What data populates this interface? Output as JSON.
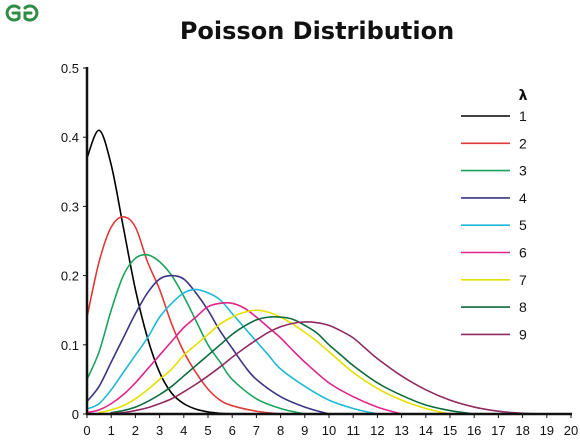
{
  "logo": {
    "name": "geeksforgeeks-logo",
    "color": "#2f8d46"
  },
  "chart_data": {
    "type": "line",
    "title": "Poisson Distribution",
    "xlabel": "",
    "ylabel": "",
    "xlim": [
      0,
      20
    ],
    "ylim": [
      0,
      0.5
    ],
    "x_ticks": [
      "0",
      "1",
      "2",
      "3",
      "4",
      "5",
      "6",
      "7",
      "8",
      "9",
      "10",
      "11",
      "12",
      "13",
      "14",
      "15",
      "16",
      "17",
      "18",
      "19",
      "20"
    ],
    "y_ticks": [
      "0",
      "0.1",
      "0.2",
      "0.3",
      "0.4",
      "0.5"
    ],
    "grid": false,
    "legend": {
      "title": "λ",
      "placement": "right"
    },
    "series": [
      {
        "name": "1",
        "color": "#000000",
        "x": [
          0,
          0.5,
          1,
          1.5,
          2,
          2.5,
          3,
          3.5,
          4,
          4.5,
          5,
          5.5,
          6
        ],
        "y": [
          0.37,
          0.41,
          0.36,
          0.27,
          0.18,
          0.11,
          0.06,
          0.03,
          0.015,
          0.007,
          0.003,
          0.001,
          0
        ]
      },
      {
        "name": "2",
        "color": "#e03a3a",
        "x": [
          0,
          0.5,
          1,
          1.5,
          2,
          2.5,
          3,
          3.5,
          4,
          4.5,
          5,
          5.5,
          6,
          7,
          8
        ],
        "y": [
          0.14,
          0.22,
          0.27,
          0.285,
          0.27,
          0.22,
          0.18,
          0.13,
          0.09,
          0.06,
          0.036,
          0.02,
          0.012,
          0.004,
          0
        ]
      },
      {
        "name": "3",
        "color": "#1aa35c",
        "x": [
          0,
          0.5,
          1,
          1.5,
          2,
          2.5,
          3,
          3.5,
          4,
          4.5,
          5,
          5.5,
          6,
          7,
          8,
          9
        ],
        "y": [
          0.05,
          0.09,
          0.15,
          0.2,
          0.225,
          0.23,
          0.22,
          0.2,
          0.17,
          0.135,
          0.1,
          0.075,
          0.05,
          0.022,
          0.008,
          0
        ]
      },
      {
        "name": "4",
        "color": "#3a3585",
        "x": [
          0,
          0.5,
          1,
          1.5,
          2,
          2.5,
          3,
          3.5,
          4,
          4.5,
          5,
          5.5,
          6,
          6.5,
          7,
          8,
          9,
          10
        ],
        "y": [
          0.018,
          0.04,
          0.075,
          0.11,
          0.145,
          0.175,
          0.195,
          0.2,
          0.195,
          0.175,
          0.15,
          0.12,
          0.095,
          0.07,
          0.05,
          0.025,
          0.01,
          0
        ]
      },
      {
        "name": "5",
        "color": "#1fb8d6",
        "x": [
          0,
          0.5,
          1,
          1.5,
          2,
          2.5,
          3,
          3.5,
          4,
          4.5,
          5,
          5.5,
          6,
          6.5,
          7,
          7.5,
          8,
          9,
          10,
          11,
          12
        ],
        "y": [
          0.007,
          0.015,
          0.035,
          0.06,
          0.085,
          0.11,
          0.14,
          0.16,
          0.175,
          0.18,
          0.175,
          0.165,
          0.145,
          0.125,
          0.105,
          0.085,
          0.065,
          0.04,
          0.02,
          0.008,
          0
        ]
      },
      {
        "name": "6",
        "color": "#e0248a",
        "x": [
          0,
          0.5,
          1,
          1.5,
          2,
          2.5,
          3,
          3.5,
          4,
          4.5,
          5,
          5.5,
          6,
          6.5,
          7,
          7.5,
          8,
          8.5,
          9,
          10,
          11,
          12,
          13
        ],
        "y": [
          0.002,
          0.006,
          0.015,
          0.028,
          0.045,
          0.065,
          0.085,
          0.105,
          0.125,
          0.14,
          0.155,
          0.16,
          0.16,
          0.153,
          0.14,
          0.125,
          0.11,
          0.092,
          0.075,
          0.045,
          0.025,
          0.01,
          0
        ]
      },
      {
        "name": "7",
        "color": "#e6e000",
        "x": [
          0.5,
          1,
          1.5,
          2,
          2.5,
          3,
          3.5,
          4,
          4.5,
          5,
          5.5,
          6,
          6.5,
          7,
          7.5,
          8,
          8.5,
          9,
          9.5,
          10,
          11,
          12,
          13,
          14,
          15
        ],
        "y": [
          0.002,
          0.006,
          0.012,
          0.022,
          0.035,
          0.05,
          0.065,
          0.085,
          0.1,
          0.115,
          0.13,
          0.14,
          0.147,
          0.15,
          0.147,
          0.14,
          0.13,
          0.118,
          0.105,
          0.09,
          0.06,
          0.037,
          0.02,
          0.008,
          0
        ]
      },
      {
        "name": "8",
        "color": "#0c6b3d",
        "x": [
          1,
          1.5,
          2,
          2.5,
          3,
          3.5,
          4,
          4.5,
          5,
          5.5,
          6,
          6.5,
          7,
          7.5,
          8,
          8.5,
          9,
          9.5,
          10,
          10.5,
          11,
          12,
          13,
          14,
          15,
          16
        ],
        "y": [
          0.002,
          0.005,
          0.01,
          0.018,
          0.028,
          0.04,
          0.055,
          0.07,
          0.085,
          0.1,
          0.115,
          0.127,
          0.136,
          0.14,
          0.14,
          0.137,
          0.128,
          0.117,
          0.1,
          0.085,
          0.07,
          0.045,
          0.027,
          0.013,
          0.005,
          0
        ]
      },
      {
        "name": "9",
        "color": "#8f2a62",
        "x": [
          1,
          1.5,
          2,
          2.5,
          3,
          3.5,
          4,
          4.5,
          5,
          5.5,
          6,
          6.5,
          7,
          7.5,
          8,
          8.5,
          9,
          9.5,
          10,
          10.5,
          11,
          11.5,
          12,
          13,
          14,
          15,
          16,
          17,
          18,
          19
        ],
        "y": [
          0.001,
          0.002,
          0.005,
          0.009,
          0.015,
          0.022,
          0.032,
          0.043,
          0.055,
          0.068,
          0.082,
          0.095,
          0.107,
          0.118,
          0.126,
          0.131,
          0.133,
          0.132,
          0.128,
          0.12,
          0.11,
          0.095,
          0.08,
          0.055,
          0.035,
          0.02,
          0.01,
          0.004,
          0.001,
          0
        ]
      }
    ]
  }
}
